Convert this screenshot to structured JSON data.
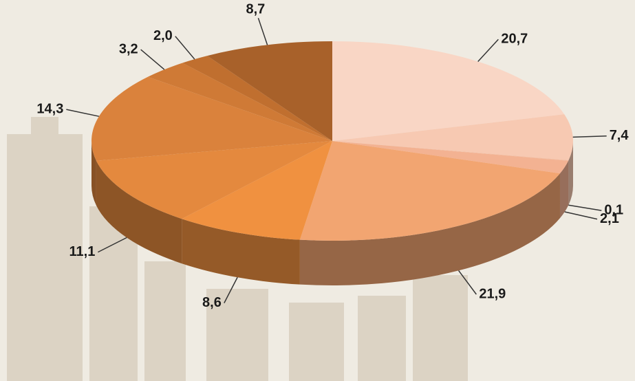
{
  "chart_data": {
    "type": "pie",
    "values": [
      20.7,
      7.4,
      0.1,
      2.1,
      21.9,
      8.6,
      11.1,
      14.3,
      3.2,
      2.0,
      8.7
    ],
    "value_labels": [
      "20,7",
      "7,4",
      "0,1",
      "2,1",
      "21,9",
      "8,6",
      "11,1",
      "14,3",
      "3,2",
      "2,0",
      "8,7"
    ],
    "colors": [
      "#f9d6c5",
      "#f7c9b2",
      "#f4bca0",
      "#f3b292",
      "#f2a571",
      "#f09140",
      "#e4893e",
      "#da823c",
      "#cf7a36",
      "#c06f2f",
      "#a8612a"
    ]
  }
}
